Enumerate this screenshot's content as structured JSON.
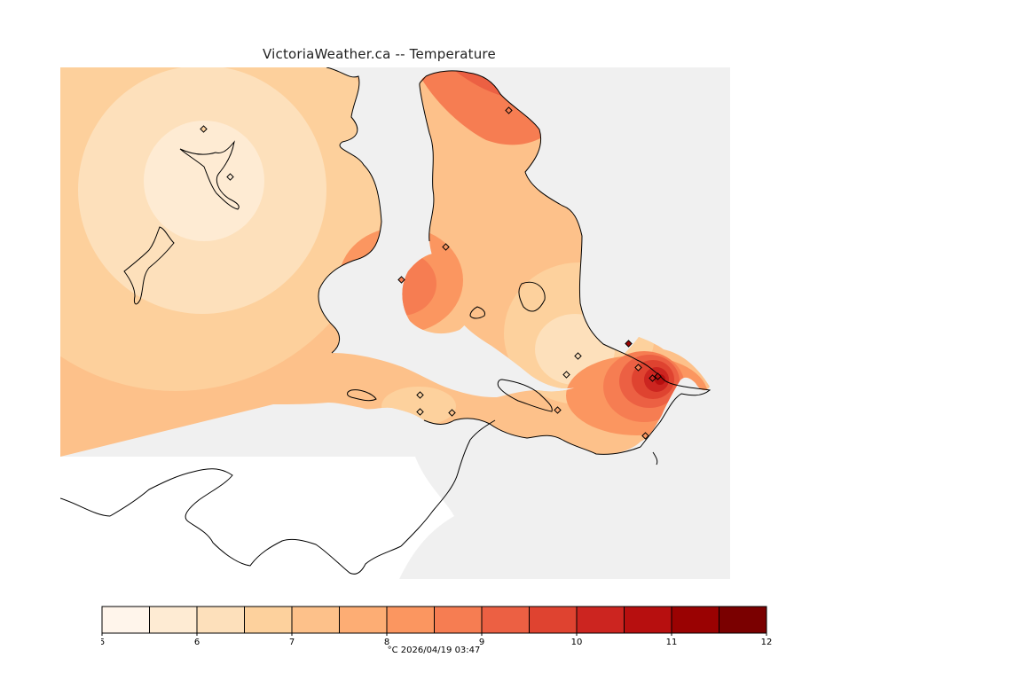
{
  "title": "VictoriaWeather.ca -- Temperature",
  "map": {
    "variable": "Temperature",
    "unit": "°C",
    "ocean_color": "#f0f0f0",
    "land_outside_color": "#ffffff",
    "coastline_color": "#000000",
    "station_count": 16
  },
  "legend": {
    "unit_label": "°C",
    "timestamp": "2026/04/19 03:47",
    "caption": "°C  2026/04/19 03:47",
    "ticks": [
      "5",
      "6",
      "7",
      "8",
      "9",
      "10",
      "11",
      "12"
    ],
    "bins": [
      {
        "from": 5.0,
        "to": 5.5,
        "color": "#fff5eb"
      },
      {
        "from": 5.5,
        "to": 6.0,
        "color": "#feebd3"
      },
      {
        "from": 6.0,
        "to": 6.5,
        "color": "#fde0bb"
      },
      {
        "from": 6.5,
        "to": 7.0,
        "color": "#fdd19d"
      },
      {
        "from": 7.0,
        "to": 7.5,
        "color": "#fdc18a"
      },
      {
        "from": 7.5,
        "to": 8.0,
        "color": "#fdad74"
      },
      {
        "from": 8.0,
        "to": 8.5,
        "color": "#fb9660"
      },
      {
        "from": 8.5,
        "to": 9.0,
        "color": "#f67d52"
      },
      {
        "from": 9.0,
        "to": 9.5,
        "color": "#ec6043"
      },
      {
        "from": 9.5,
        "to": 10.0,
        "color": "#df4330"
      },
      {
        "from": 10.0,
        "to": 10.5,
        "color": "#cc2520"
      },
      {
        "from": 10.5,
        "to": 11.0,
        "color": "#b70f0f"
      },
      {
        "from": 11.0,
        "to": 11.5,
        "color": "#9a0202"
      },
      {
        "from": 11.5,
        "to": 12.0,
        "color": "#7a0000"
      }
    ]
  }
}
